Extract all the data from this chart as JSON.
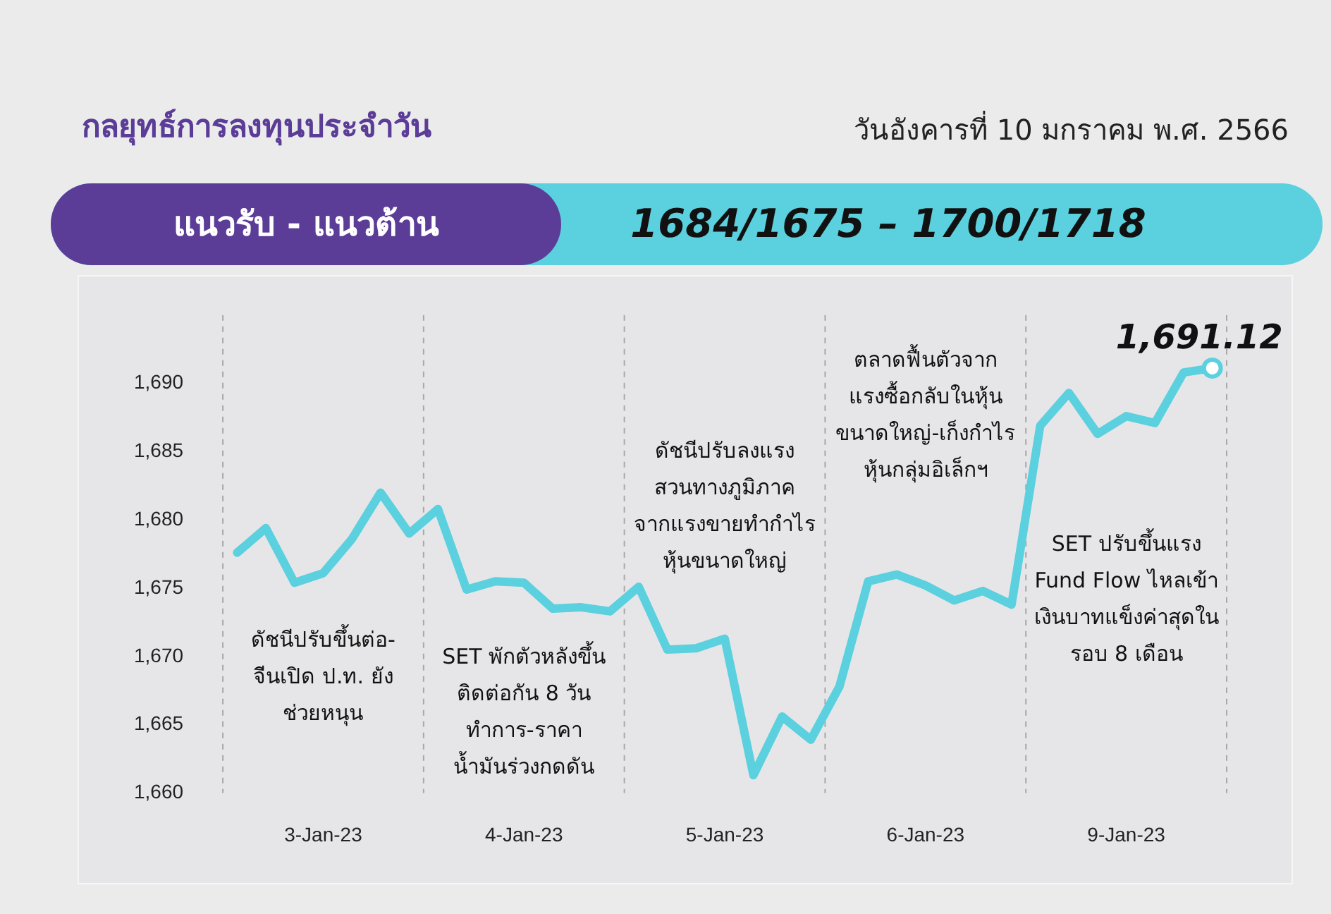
{
  "chart_data": {
    "type": "line",
    "title": "กลยุทธ์การลงทุนประจำวัน",
    "subtitle": "วันอังคารที่ 10 มกราคม พ.ศ. 2566",
    "categories": [
      null,
      null,
      null,
      "3-Jan-23",
      null,
      null,
      null,
      null,
      null,
      null,
      "4-Jan-23",
      null,
      null,
      null,
      null,
      null,
      null,
      "5-Jan-23",
      null,
      null,
      null,
      null,
      null,
      null,
      "6-Jan-23",
      null,
      null,
      null,
      null,
      null,
      null,
      "9-Jan-23",
      null,
      null,
      null
    ],
    "series": [
      {
        "color": "#5bd0de",
        "values": [
          1677.6,
          1679.4,
          1675.4,
          1676.1,
          1678.6,
          1682.0,
          1679.0,
          1680.8,
          1674.9,
          1675.5,
          1675.4,
          1673.5,
          1673.6,
          1673.3,
          1675.1,
          1670.5,
          1670.6,
          1671.3,
          1661.3,
          1665.6,
          1663.9,
          1667.8,
          1675.5,
          1676.0,
          1675.2,
          1674.1,
          1674.8,
          1673.8,
          1686.9,
          1689.3,
          1686.3,
          1687.6,
          1687.1,
          1690.8,
          1691.12
        ],
        "value_labels": [
          null,
          null,
          null,
          null,
          null,
          null,
          null,
          null,
          null,
          null,
          null,
          null,
          null,
          null,
          null,
          null,
          null,
          null,
          null,
          null,
          null,
          null,
          null,
          null,
          null,
          null,
          null,
          null,
          null,
          null,
          null,
          null,
          null,
          null,
          "1,691.12"
        ]
      }
    ],
    "ylim": [
      1660,
      1695
    ],
    "yticks": [
      {
        "value": 1660,
        "label": "1,660"
      },
      {
        "value": 1665,
        "label": "1,665"
      },
      {
        "value": 1670,
        "label": "1,670"
      },
      {
        "value": 1675,
        "label": "1,675"
      },
      {
        "value": 1680,
        "label": "1,680"
      },
      {
        "value": 1685,
        "label": "1,685"
      },
      {
        "value": 1690,
        "label": "1,690"
      }
    ],
    "grid": "x",
    "legend": false,
    "marker": "none",
    "line_style": "solid",
    "annotations": [
      {
        "text": "แนวรับ - แนวต้าน"
      },
      {
        "text": "1684/1675 – 1700/1718"
      },
      "ดัชนีปรับขึ้นต่อ-\nจีนเปิด ป.ท. ยัง\nช่วยหนุน",
      "SET พักตัวหลังขึ้น\nติดต่อกัน 8 วัน\nทำการ-ราคา\nน้ำมันร่วงกดดัน",
      "ดัชนีปรับลงแรง\nสวนทางภูมิภาค\nจากแรงขายทำกำไร\nหุ้นขนาดใหญ่",
      "ตลาดฟื้นตัวจาก\nแรงซื้อกลับในหุ้น\nขนาดใหญ่-เก็งกำไร\nหุ้นกลุ่มอิเล็กฯ",
      "SET ปรับขึ้นแรง\nFund Flow ไหลเข้า\nเงินบาทแข็งค่าสุดใน\nรอบ 8 เดือน"
    ]
  }
}
